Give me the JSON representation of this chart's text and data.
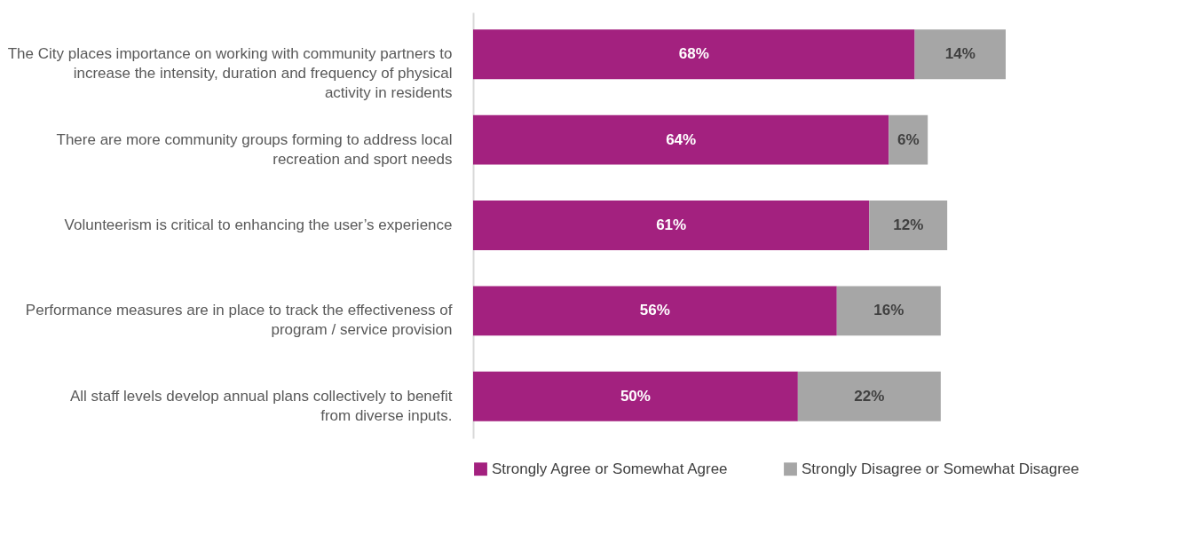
{
  "chart_data": {
    "type": "bar",
    "orientation": "horizontal",
    "stacked": true,
    "legend": "bottom",
    "grid": false,
    "categories": [
      "The City places importance on working with community partners to increase the intensity, duration and frequency of physical activity in residents",
      "There are more community groups forming to address local recreation and sport needs",
      "Volunteerism is critical to enhancing the user’s experience",
      "Performance measures are in place to track the effectiveness of program / service provision",
      "All staff levels develop annual plans collectively to benefit from diverse inputs."
    ],
    "series": [
      {
        "name": "Strongly Agree or Somewhat Agree",
        "color": "#a3217f",
        "values": [
          68,
          64,
          61,
          56,
          50
        ],
        "value_labels": [
          "68%",
          "64%",
          "61%",
          "56%",
          "50%"
        ]
      },
      {
        "name": "Strongly Disagree or Somewhat Disagree",
        "color": "#a6a6a6",
        "values": [
          14,
          6,
          12,
          16,
          22
        ],
        "value_labels": [
          "14%",
          "6%",
          "12%",
          "16%",
          "22%"
        ]
      }
    ]
  }
}
